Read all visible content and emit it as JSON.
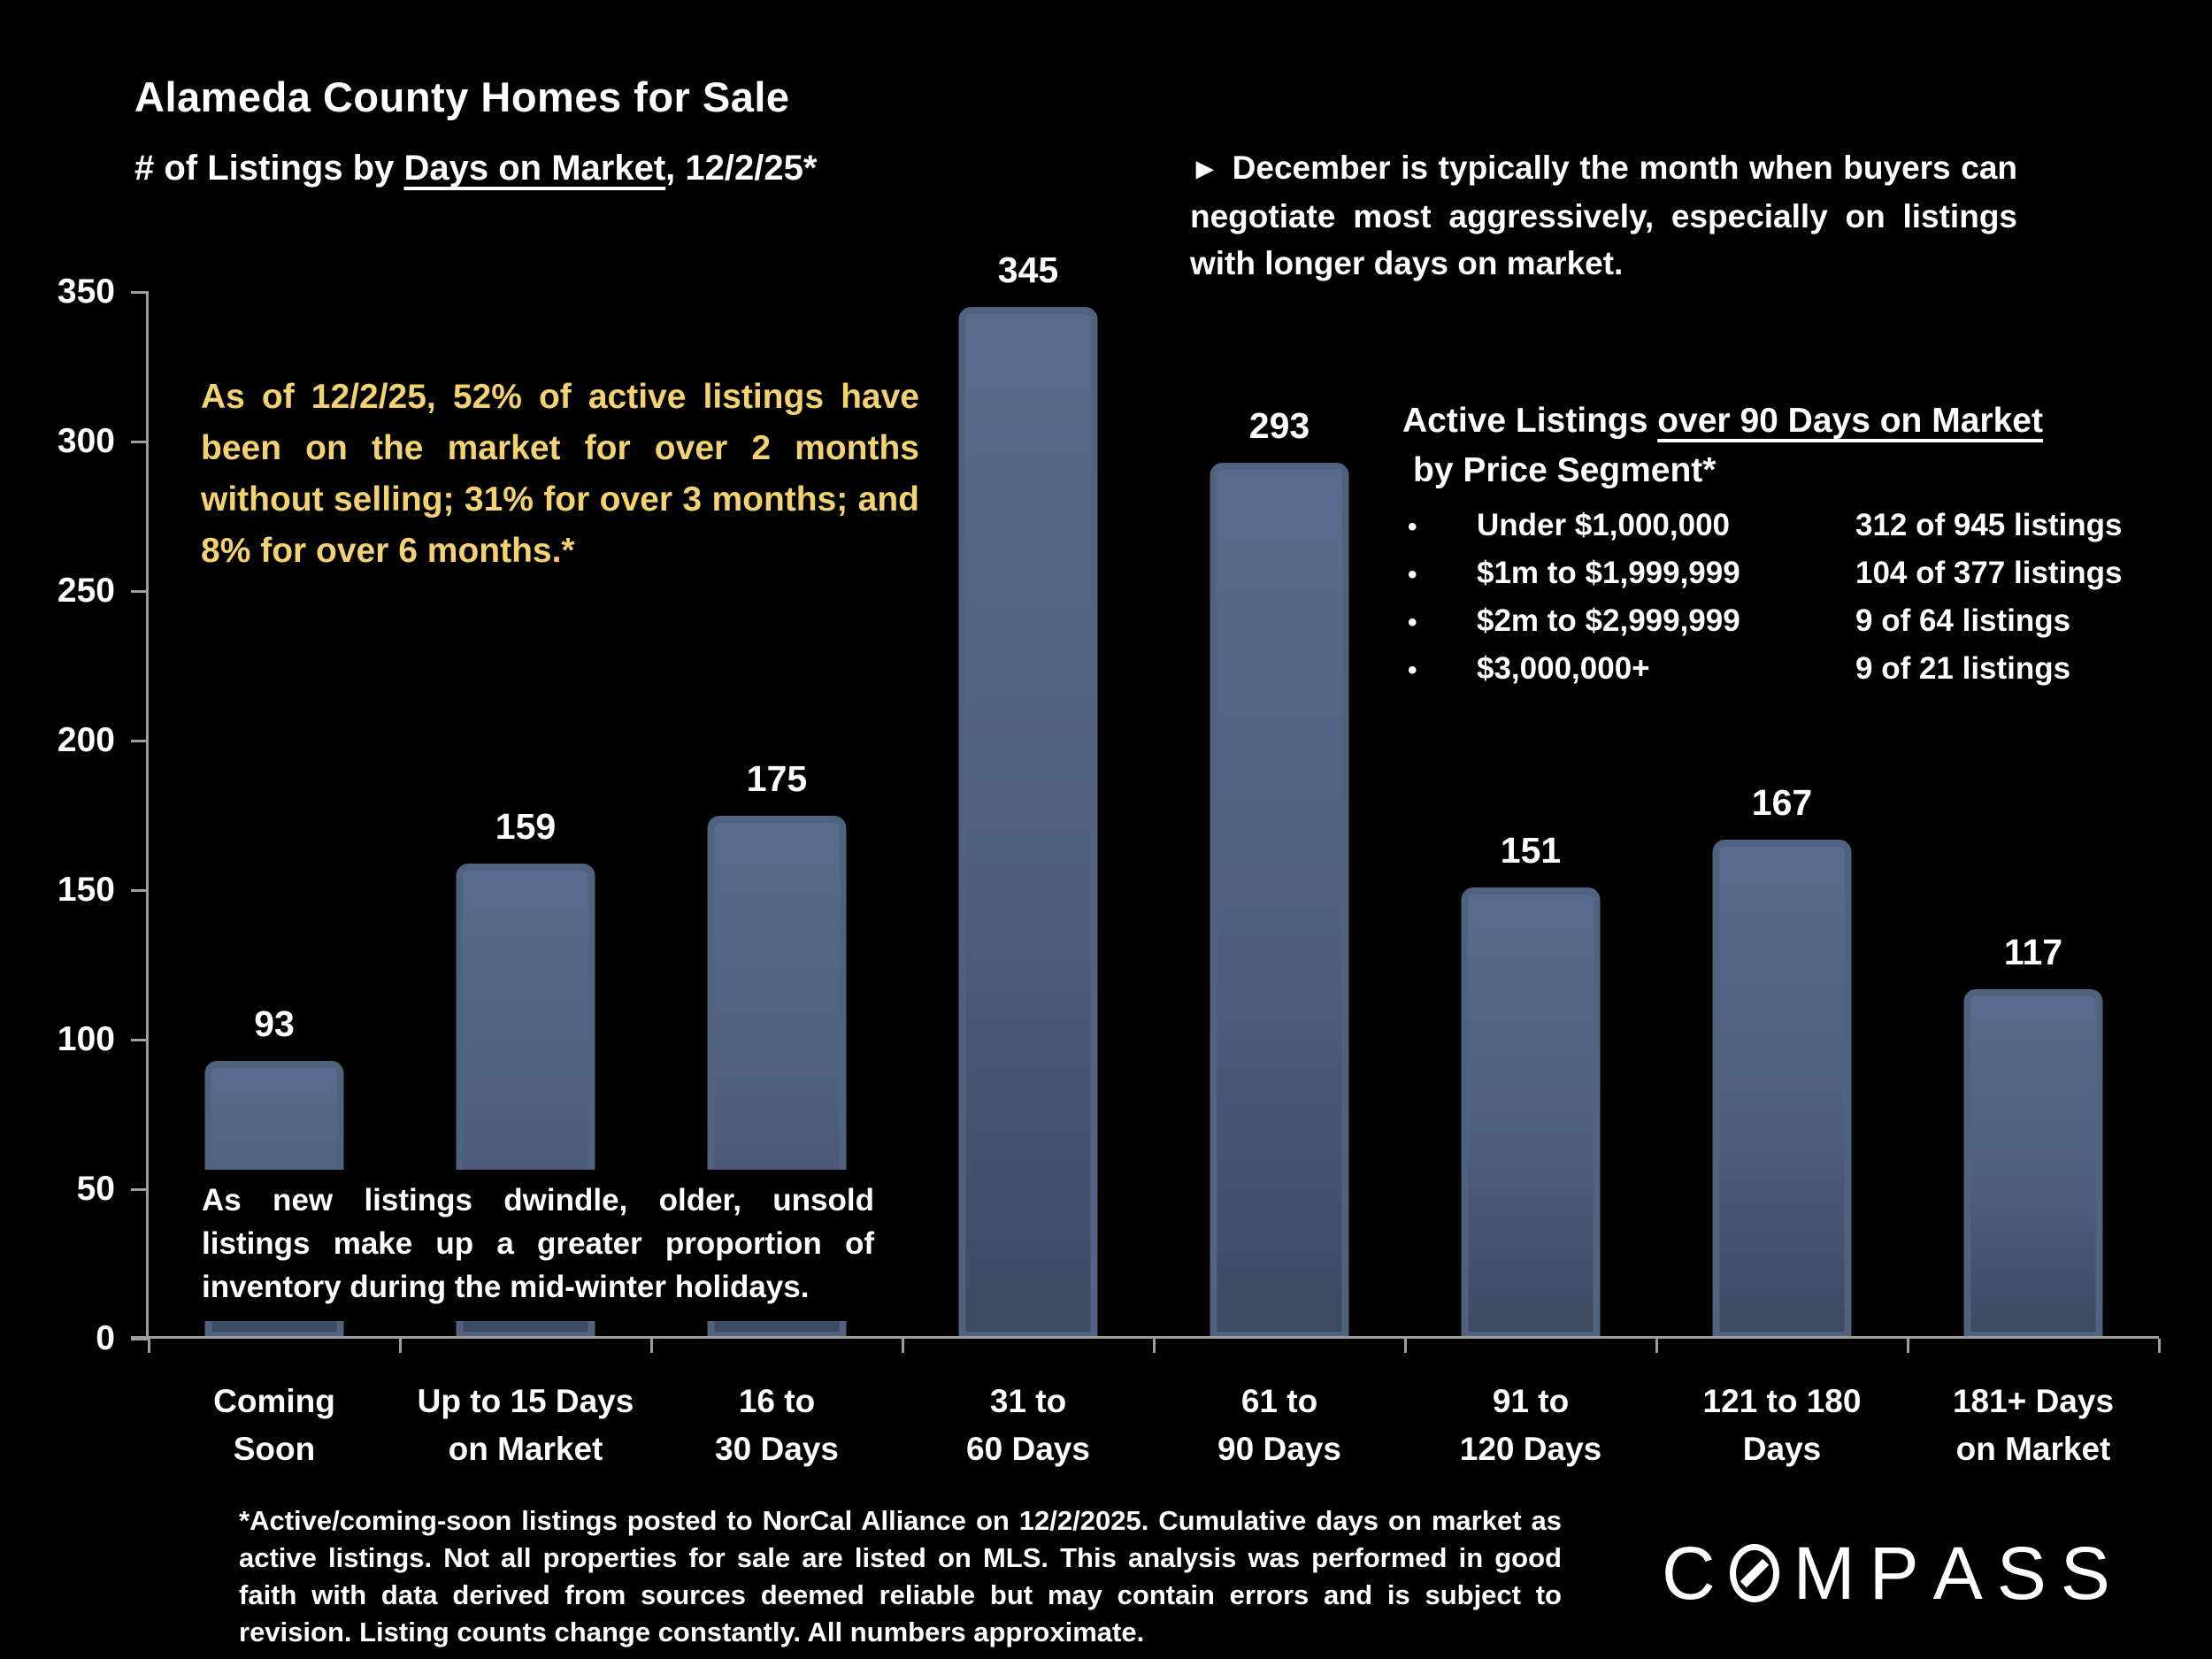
{
  "header": {
    "title": "Alameda County Homes for Sale",
    "subtitle_prefix": "# of Listings by ",
    "subtitle_underlined": "Days on Market",
    "subtitle_suffix": ", 12/2/25*"
  },
  "notes": {
    "december_marker": "►",
    "december": "December is typically the month when buyers can negotiate most aggressively, especially on listings with longer days on market.",
    "yellow": "As of 12/2/25, 52% of active listings have been on the market for over 2 months without selling; 31% for over 3 months; and 8% for over 6 months.*",
    "midwinter": "As new listings dwindle, older, unsold listings make up a greater proportion of inventory during the mid-winter holidays."
  },
  "price_segments": {
    "heading_prefix": "Active Listings ",
    "heading_underlined": "over 90 Days on Market",
    "heading_line2": "by Price Segment*",
    "bullet": "•",
    "rows": [
      {
        "label": "Under $1,000,000",
        "value": "312 of 945 listings"
      },
      {
        "label": "$1m to $1,999,999",
        "value": "104 of 377 listings"
      },
      {
        "label": "$2m to $2,999,999",
        "value": "9 of 64 listings"
      },
      {
        "label": "$3,000,000+",
        "value": "9 of 21 listings"
      }
    ]
  },
  "chart_data": {
    "type": "bar",
    "title": "Alameda County Homes for Sale — # of Listings by Days on Market, 12/2/25*",
    "categories": [
      "Coming\nSoon",
      "Up to 15 Days\non  Market",
      "16 to\n30 Days",
      "31 to\n60 Days",
      "61 to\n90 Days",
      "91 to\n120 Days",
      "121 to 180\nDays",
      "181+ Days\non Market"
    ],
    "values": [
      93,
      159,
      175,
      345,
      293,
      151,
      167,
      117
    ],
    "xlabel": "",
    "ylabel": "",
    "ylim": [
      0,
      350
    ],
    "yticks": [
      0,
      50,
      100,
      150,
      200,
      250,
      300,
      350
    ],
    "grid": false,
    "legend": "none",
    "bar_frame_color": "#51627f",
    "bar_fill_top": "#596c8f",
    "bar_fill_bottom": "#3d4961",
    "axis_color": "#9d9d9d"
  },
  "footnote": "*Active/coming-soon listings posted to NorCal Alliance on 12/2/2025. Cumulative days on market as active listings. Not all properties for sale are listed on MLS. This analysis was performed in good faith with data derived from sources deemed reliable but may contain errors and is subject to revision. Listing counts change constantly. All numbers approximate.",
  "logo": {
    "text": "COMPASS",
    "letters": [
      "C",
      "O",
      "M",
      "P",
      "A",
      "S",
      "S"
    ]
  },
  "colors": {
    "background": "#000000",
    "text": "#ffffff",
    "accent_yellow": "#f2d272",
    "axis": "#9d9d9d"
  }
}
